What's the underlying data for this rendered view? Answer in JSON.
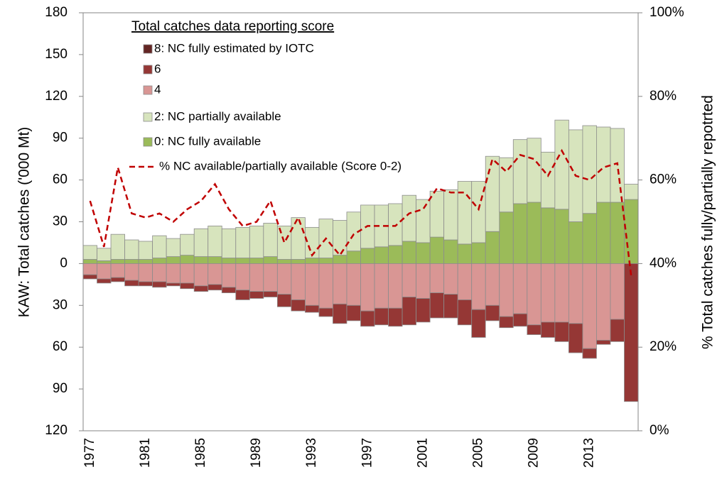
{
  "chart_data": {
    "type": "bar",
    "legend_title": "Total catches data reporting score",
    "ylabel": "KAW: Total catches ('000 Mt)",
    "y2label": "% Total catches fully/partially repotrted",
    "categories": [
      "1977",
      null,
      null,
      null,
      "1981",
      null,
      null,
      null,
      "1985",
      null,
      null,
      null,
      "1989",
      null,
      null,
      null,
      "1993",
      null,
      null,
      null,
      "1997",
      null,
      null,
      null,
      "2001",
      null,
      null,
      null,
      "2005",
      null,
      null,
      null,
      "2009",
      null,
      null,
      null,
      "2013",
      null,
      null,
      null
    ],
    "ylim": [
      -120,
      180
    ],
    "yticks": [
      {
        "value": -120,
        "label": "120"
      },
      {
        "value": -90,
        "label": "90"
      },
      {
        "value": -60,
        "label": "60"
      },
      {
        "value": -30,
        "label": "30"
      },
      0,
      30,
      60,
      90,
      120,
      150,
      180
    ],
    "negative_tick_color": "#ff0000",
    "y2lim": [
      0,
      100
    ],
    "y2ticks": [
      {
        "value": 0,
        "label": "0%"
      },
      {
        "value": 20,
        "label": "20%"
      },
      {
        "value": 40,
        "label": "40%"
      },
      {
        "value": 60,
        "label": "60%"
      },
      {
        "value": 80,
        "label": "80%"
      },
      {
        "value": 100,
        "label": "100%"
      }
    ],
    "series": [
      {
        "name": "8: NC fully estimated by IOTC",
        "color": "#632523",
        "values": [
          0,
          0,
          0,
          0,
          0,
          0,
          0,
          0,
          0,
          0,
          0,
          0,
          0,
          0,
          0,
          0,
          0,
          0,
          0,
          0,
          0,
          0,
          0,
          0,
          0,
          0,
          0,
          0,
          0,
          0,
          0,
          0,
          0,
          0,
          0,
          0,
          0,
          0,
          0,
          0
        ]
      },
      {
        "name": "6",
        "color": "#953735",
        "values": [
          -3,
          -3,
          -3,
          -4,
          -3,
          -4,
          -2,
          -4,
          -4,
          -4,
          -4,
          -7,
          -5,
          -4,
          -9,
          -8,
          -5,
          -6,
          -14,
          -11,
          -11,
          -12,
          -13,
          -20,
          -17,
          -18,
          -17,
          -18,
          -20,
          -11,
          -8,
          -9,
          -7,
          -11,
          -14,
          -21,
          -7,
          -3,
          -16,
          -99
        ]
      },
      {
        "name": "4",
        "color": "#d99694",
        "values": [
          -8,
          -11,
          -10,
          -12,
          -13,
          -13,
          -14,
          -14,
          -16,
          -15,
          -17,
          -19,
          -20,
          -20,
          -22,
          -26,
          -30,
          -32,
          -29,
          -30,
          -34,
          -32,
          -32,
          -24,
          -25,
          -21,
          -22,
          -26,
          -33,
          -30,
          -38,
          -36,
          -44,
          -42,
          -42,
          -43,
          -61,
          -55,
          -40,
          0
        ]
      },
      {
        "name": "2: NC partially available",
        "color": "#d7e4bd",
        "values": [
          10,
          9,
          18,
          14,
          13,
          16,
          13,
          15,
          20,
          22,
          21,
          22,
          23,
          24,
          24,
          30,
          22,
          28,
          25,
          28,
          31,
          30,
          30,
          33,
          31,
          33,
          36,
          45,
          44,
          54,
          39,
          46,
          46,
          40,
          64,
          66,
          63,
          54,
          53,
          11
        ]
      },
      {
        "name": "0: NC fully available",
        "color": "#9bbb59",
        "values": [
          3,
          2,
          3,
          3,
          3,
          4,
          5,
          6,
          5,
          5,
          4,
          4,
          4,
          5,
          3,
          3,
          4,
          4,
          6,
          9,
          11,
          12,
          13,
          16,
          15,
          19,
          17,
          14,
          15,
          23,
          37,
          43,
          44,
          40,
          39,
          30,
          36,
          44,
          44,
          46
        ]
      },
      {
        "name": "% NC available/partially available (Score 0-2)",
        "type": "line",
        "axis": "y2",
        "color": "#c00000",
        "dashed": true,
        "values": [
          55,
          44,
          63,
          52,
          51,
          52,
          50,
          53,
          55,
          59,
          53,
          49,
          50,
          55,
          45,
          51,
          42,
          46,
          42,
          47,
          49,
          49,
          49,
          52,
          53,
          58,
          57,
          57,
          53,
          65,
          62,
          66,
          65,
          61,
          67,
          61,
          60,
          63,
          64,
          37
        ]
      }
    ]
  }
}
